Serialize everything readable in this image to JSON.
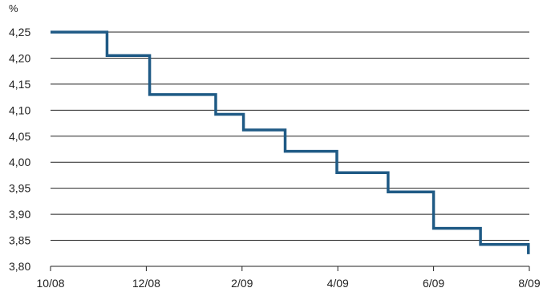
{
  "chart_data": {
    "type": "line",
    "step": true,
    "unit_label": "%",
    "ylim": [
      3.8,
      4.25
    ],
    "y_ticks": [
      {
        "value": 4.25,
        "label": "4,25"
      },
      {
        "value": 4.2,
        "label": "4,20"
      },
      {
        "value": 4.15,
        "label": "4,15"
      },
      {
        "value": 4.1,
        "label": "4,10"
      },
      {
        "value": 4.05,
        "label": "4,05"
      },
      {
        "value": 4.0,
        "label": "4,00"
      },
      {
        "value": 3.95,
        "label": "3,95"
      },
      {
        "value": 3.9,
        "label": "3,90"
      },
      {
        "value": 3.85,
        "label": "3,85"
      },
      {
        "value": 3.8,
        "label": "3,80"
      }
    ],
    "x_ticks": [
      {
        "month": 0,
        "label": "10/08"
      },
      {
        "month": 2,
        "label": "12/08"
      },
      {
        "month": 4,
        "label": "2/09"
      },
      {
        "month": 6,
        "label": "4/09"
      },
      {
        "month": 8,
        "label": "6/09"
      },
      {
        "month": 10,
        "label": "8/09"
      }
    ],
    "xlim_months": [
      0,
      10
    ],
    "grid": true,
    "series": [
      {
        "color": "#1f5a85",
        "points": [
          {
            "x": 0.0,
            "y": 4.25
          },
          {
            "x": 1.18,
            "y": 4.205
          },
          {
            "x": 2.07,
            "y": 4.13
          },
          {
            "x": 3.45,
            "y": 4.092
          },
          {
            "x": 4.03,
            "y": 4.062
          },
          {
            "x": 4.9,
            "y": 4.021
          },
          {
            "x": 5.98,
            "y": 3.98
          },
          {
            "x": 7.05,
            "y": 3.943
          },
          {
            "x": 8.0,
            "y": 3.873
          },
          {
            "x": 8.98,
            "y": 3.842
          },
          {
            "x": 9.98,
            "y": 3.828
          }
        ]
      }
    ]
  }
}
